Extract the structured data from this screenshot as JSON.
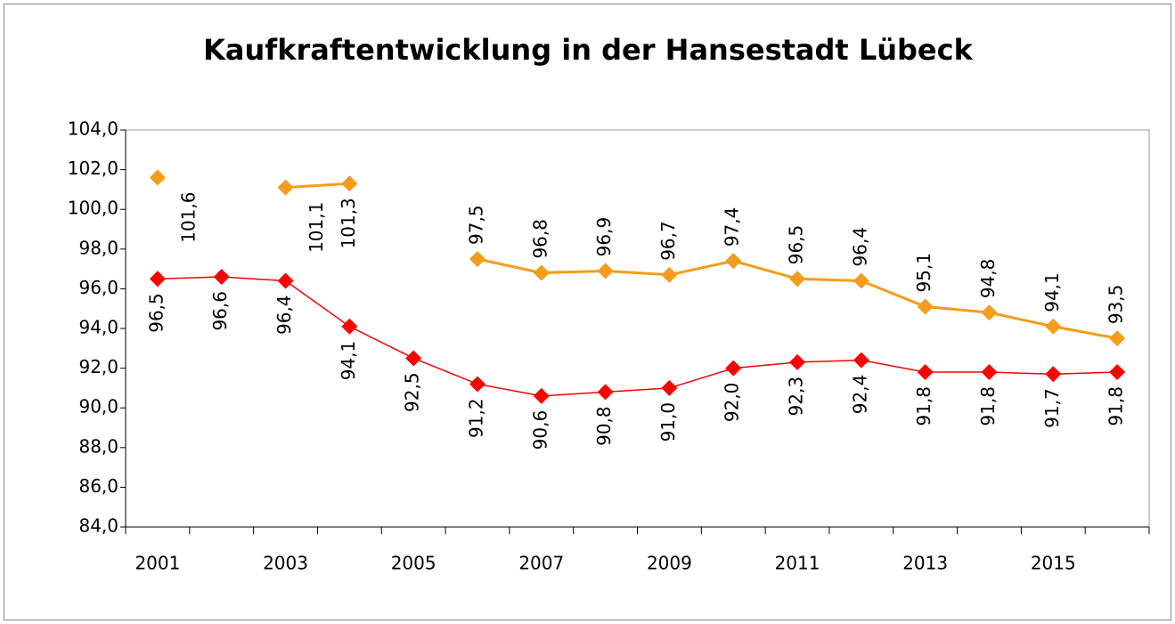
{
  "chart_data": {
    "type": "line",
    "title": "Kaufkraftentwicklung in der Hansestadt Lübeck",
    "categories": [
      "2001",
      null,
      "2003",
      null,
      "2005",
      null,
      "2007",
      null,
      "2009",
      null,
      "2011",
      null,
      "2013",
      null,
      "2015",
      null
    ],
    "series": [
      {
        "color": "#ff0000",
        "values": [
          96.5,
          96.6,
          96.4,
          94.1,
          92.5,
          91.2,
          90.6,
          90.8,
          91.0,
          92.0,
          92.3,
          92.4,
          91.8,
          91.8,
          91.7,
          91.8
        ],
        "value_labels": [
          "96,5",
          "96,6",
          "96,4",
          "94,1",
          "92,5",
          "91,2",
          "90,6",
          "90,8",
          "91,0",
          "92,0",
          "92,3",
          "92,4",
          "91,8",
          "91,8",
          "91,7",
          "91,8"
        ]
      },
      {
        "color": "#f59c1a",
        "values": [
          101.6,
          null,
          101.1,
          101.3,
          null,
          97.5,
          96.8,
          96.9,
          96.7,
          97.4,
          96.5,
          96.4,
          95.1,
          94.8,
          94.1,
          93.5
        ],
        "value_labels": [
          "101,6",
          null,
          "101,1",
          "101,3",
          null,
          "97,5",
          "96,8",
          "96,9",
          "96,7",
          "97,4",
          "96,5",
          "96,4",
          "95,1",
          "94,8",
          "94,1",
          "93,5"
        ]
      }
    ],
    "ylim": [
      84,
      104
    ],
    "yticks": [
      {
        "value": 84,
        "label": "84,0"
      },
      {
        "value": 86,
        "label": "86,0"
      },
      {
        "value": 88,
        "label": "88,0"
      },
      {
        "value": 90,
        "label": "90,0"
      },
      {
        "value": 92,
        "label": "92,0"
      },
      {
        "value": 94,
        "label": "94,0"
      },
      {
        "value": 96,
        "label": "96,0"
      },
      {
        "value": 98,
        "label": "98,0"
      },
      {
        "value": 100,
        "label": "100,0"
      },
      {
        "value": 102,
        "label": "102,0"
      },
      {
        "value": 104,
        "label": "104,0"
      }
    ]
  }
}
